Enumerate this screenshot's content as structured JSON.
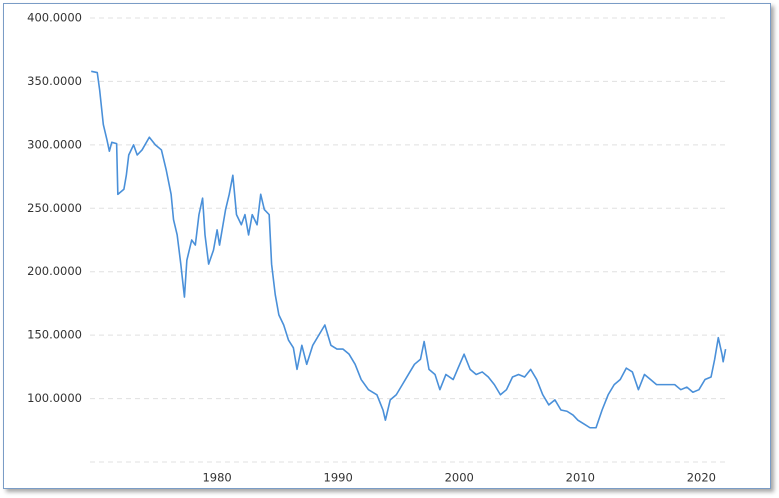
{
  "chart_data": {
    "type": "line",
    "x": [
      1969.6,
      1970.1,
      1970.3,
      1970.6,
      1970.9,
      1971.1,
      1971.3,
      1971.7,
      1971.8,
      1972.3,
      1972.5,
      1972.7,
      1973.1,
      1973.4,
      1973.8,
      1974.4,
      1974.9,
      1975.4,
      1975.8,
      1976.2,
      1976.4,
      1976.7,
      1977.0,
      1977.3,
      1977.5,
      1977.9,
      1978.2,
      1978.5,
      1978.8,
      1979.0,
      1979.3,
      1979.7,
      1980.0,
      1980.2,
      1980.7,
      1981.0,
      1981.3,
      1981.6,
      1982.0,
      1982.3,
      1982.6,
      1982.9,
      1983.3,
      1983.6,
      1983.9,
      1984.3,
      1984.5,
      1984.8,
      1985.1,
      1985.5,
      1985.9,
      1986.3,
      1986.6,
      1987.0,
      1987.4,
      1987.9,
      1988.4,
      1988.9,
      1989.4,
      1989.9,
      1990.4,
      1990.9,
      1991.4,
      1991.9,
      1992.5,
      1993.2,
      1993.7,
      1993.9,
      1994.3,
      1994.8,
      1995.3,
      1995.8,
      1996.3,
      1996.8,
      1997.1,
      1997.5,
      1998.0,
      1998.4,
      1998.9,
      1999.5,
      1999.9,
      2000.4,
      2000.9,
      2001.4,
      2001.9,
      2002.4,
      2002.9,
      2003.4,
      2003.9,
      2004.4,
      2004.9,
      2005.4,
      2005.9,
      2006.4,
      2006.9,
      2007.4,
      2007.9,
      2008.4,
      2008.9,
      2009.4,
      2009.8,
      2010.3,
      2010.8,
      2011.3,
      2011.8,
      2012.3,
      2012.8,
      2013.3,
      2013.8,
      2014.3,
      2014.8,
      2015.3,
      2015.8,
      2016.3,
      2016.8,
      2017.3,
      2017.8,
      2018.3,
      2018.8,
      2019.3,
      2019.8,
      2020.3,
      2020.8,
      2021.1,
      2021.4,
      2021.7,
      2021.8,
      2022.0
    ],
    "values": [
      358,
      357,
      343,
      316,
      304,
      295,
      302,
      301,
      261,
      265,
      276,
      292,
      300,
      292,
      296,
      306,
      300,
      296,
      280,
      261,
      241,
      229,
      206,
      180,
      209,
      225,
      221,
      245,
      258,
      229,
      206,
      217,
      233,
      221,
      249,
      261,
      276,
      245,
      237,
      245,
      229,
      245,
      237,
      261,
      249,
      245,
      206,
      182,
      166,
      158,
      146,
      140,
      123,
      142,
      127,
      142,
      150,
      158,
      142,
      139,
      139,
      135,
      127,
      115,
      107,
      103,
      91,
      83,
      99,
      103,
      111,
      119,
      127,
      131,
      145,
      123,
      119,
      107,
      119,
      115,
      124,
      135,
      123,
      119,
      121,
      117,
      111,
      103,
      107,
      117,
      119,
      117,
      123,
      115,
      103,
      95,
      99,
      91,
      90,
      87,
      83,
      80,
      77,
      77,
      91,
      103,
      111,
      115,
      124,
      121,
      107,
      119,
      115,
      111,
      111,
      111,
      111,
      107,
      109,
      105,
      107,
      115,
      117,
      131,
      148,
      135,
      129,
      139
    ],
    "color": "#4a90d9",
    "xlim": [
      1969.5,
      2022.2
    ],
    "xticks": [
      1980,
      1990,
      2000,
      2010,
      2020
    ],
    "ylim": [
      50,
      400
    ],
    "yticks": [
      {
        "value": 100,
        "label": "100.0000"
      },
      {
        "value": 150,
        "label": "150.0000"
      },
      {
        "value": 200,
        "label": "200.0000"
      },
      {
        "value": 250,
        "label": "250.0000"
      },
      {
        "value": 300,
        "label": "300.0000"
      },
      {
        "value": 350,
        "label": "350.0000"
      },
      {
        "value": 400,
        "label": "400.0000"
      }
    ],
    "grid": true
  }
}
